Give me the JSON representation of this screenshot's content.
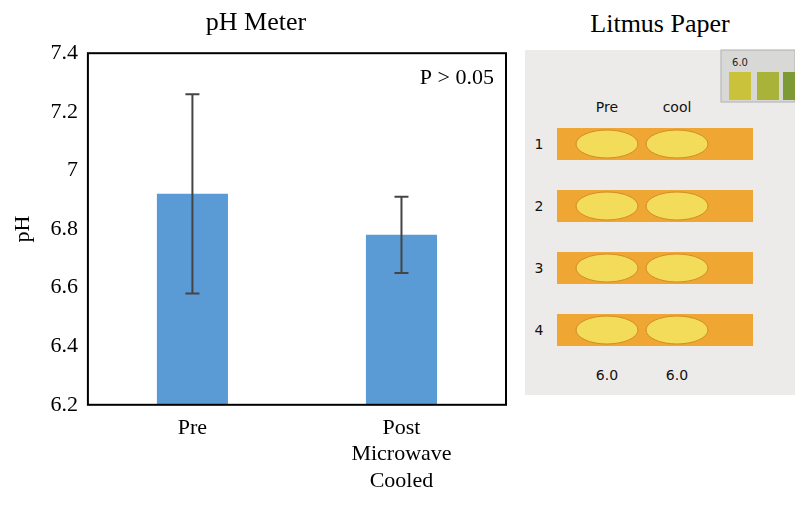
{
  "chart_data": {
    "type": "bar",
    "title": "pH Meter",
    "categories": [
      "Pre",
      "Post Microwave Cooled"
    ],
    "values": [
      6.92,
      6.78
    ],
    "errors": [
      0.34,
      0.13
    ],
    "color": "#5b9bd5",
    "y_label": "pH",
    "ylim": [
      6.2,
      7.4
    ],
    "yticks": [
      6.2,
      6.4,
      6.6,
      6.8,
      7,
      7.2,
      7.4
    ],
    "grid": false,
    "annotation": "P > 0.05"
  },
  "photo": {
    "title": "Litmus Paper",
    "column_labels": [
      "Pre",
      "cool"
    ],
    "row_labels": [
      "1",
      "2",
      "3",
      "4"
    ],
    "readings": [
      "6.0",
      "6.0"
    ],
    "scale_label": "6.0"
  }
}
